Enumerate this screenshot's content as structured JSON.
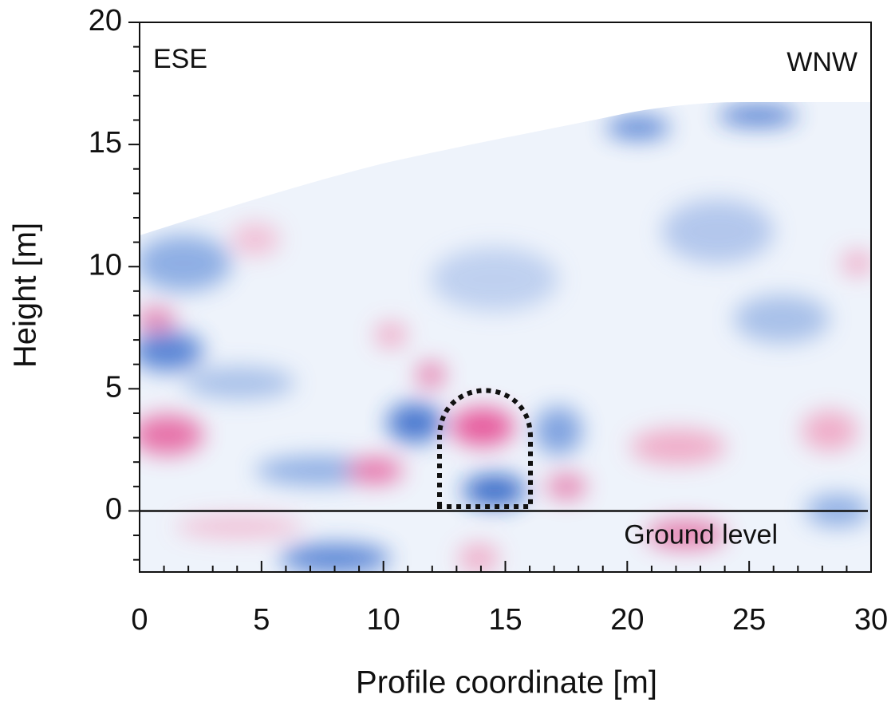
{
  "chart_data": {
    "type": "heatmap-profile",
    "x_label": "Profile coordinate [m]",
    "y_label": "Height [m]",
    "xlim": [
      0,
      30
    ],
    "ylim": [
      -2.5,
      20
    ],
    "xticks": [
      0,
      5,
      10,
      15,
      20,
      25,
      30
    ],
    "yticks": [
      0,
      5,
      10,
      15,
      20
    ],
    "x_minor_ticks": [
      1,
      2,
      3,
      4,
      6,
      7,
      8,
      9,
      11,
      12,
      13,
      14,
      16,
      17,
      18,
      19,
      21,
      22,
      23,
      24,
      26,
      27,
      28,
      29
    ],
    "y_minor_ticks": [
      -2,
      -1,
      1,
      2,
      3,
      4,
      6,
      7,
      8,
      9,
      11,
      12,
      13,
      14,
      16,
      17,
      18,
      19
    ],
    "annotations": [
      "ESE",
      "WNW"
    ],
    "reference_line": {
      "y": 0,
      "label": "Ground level"
    }
  }
}
